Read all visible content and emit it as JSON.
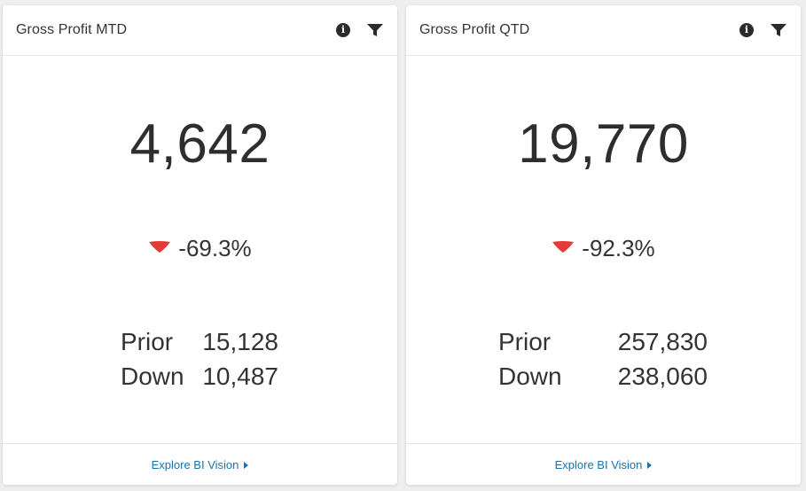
{
  "theme": {
    "negative_color": "#e53935",
    "link_color": "#1a73a8"
  },
  "cards": [
    {
      "title": "Gross Profit MTD",
      "value": "4,642",
      "change": "-69.3%",
      "change_direction": "down",
      "stats": [
        {
          "label": "Prior",
          "value": "15,128"
        },
        {
          "label": "Down",
          "value": "10,487"
        }
      ],
      "footer_link": "Explore BI Vision",
      "icons": [
        "info-icon",
        "filter-icon",
        "caret-right-icon"
      ]
    },
    {
      "title": "Gross Profit QTD",
      "value": "19,770",
      "change": "-92.3%",
      "change_direction": "down",
      "stats": [
        {
          "label": "Prior",
          "value": "257,830"
        },
        {
          "label": "Down",
          "value": "238,060"
        }
      ],
      "footer_link": "Explore BI Vision",
      "icons": [
        "info-icon",
        "filter-icon",
        "caret-right-icon"
      ]
    }
  ]
}
